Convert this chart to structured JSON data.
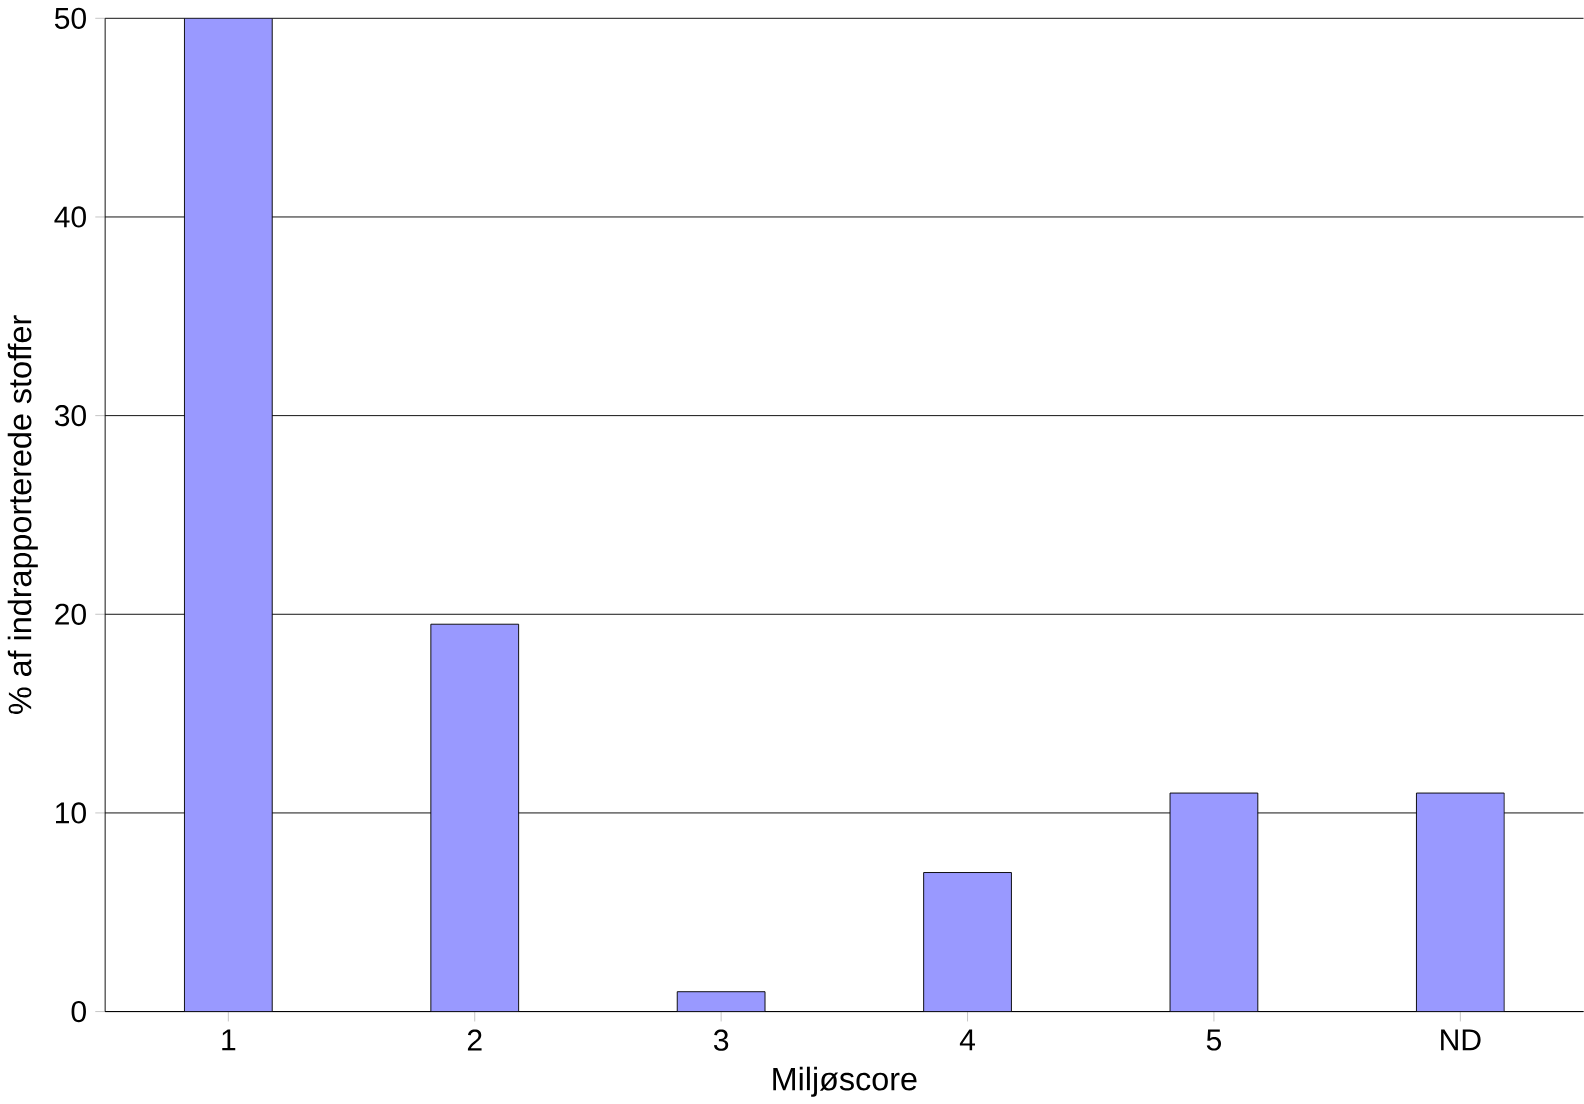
{
  "chart_data": {
    "type": "bar",
    "xlabel": "Miljøscore",
    "ylabel": "% af indrapporterede stoffer",
    "categories": [
      "1",
      "2",
      "3",
      "4",
      "5",
      "ND"
    ],
    "values": [
      50,
      19.5,
      1,
      7,
      11,
      11
    ],
    "color": "#9999ff",
    "ylim": [
      0,
      50
    ],
    "yticks": [
      0,
      10,
      20,
      30,
      40,
      50
    ],
    "grid": "y"
  }
}
